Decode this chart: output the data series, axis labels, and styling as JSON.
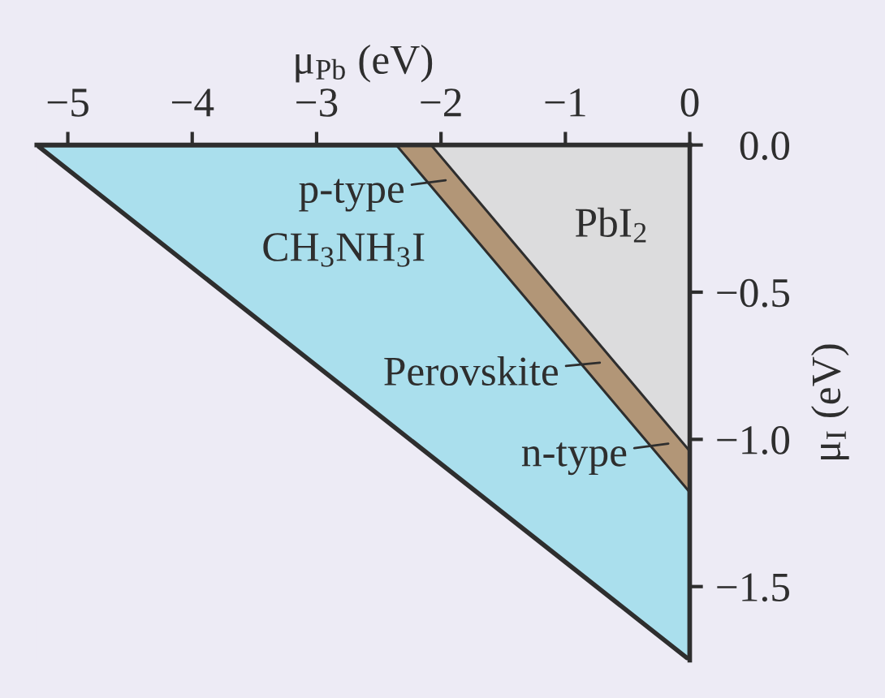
{
  "chart_data": {
    "type": "area",
    "xlabel": "μ$_{Pb}$ (eV)",
    "ylabel": "μ$_{I}$ (eV)",
    "xlim": [
      -5.25,
      0
    ],
    "ylim": [
      -1.75,
      0
    ],
    "xticks": [
      {
        "value": -5,
        "label": "−5"
      },
      {
        "value": -4,
        "label": "−4"
      },
      {
        "value": -3,
        "label": "−3"
      },
      {
        "value": -2,
        "label": "−2"
      },
      {
        "value": -1,
        "label": "−1"
      },
      0
    ],
    "yticks": [
      {
        "value": 0,
        "label": "0.0"
      },
      {
        "value": -0.5,
        "label": "−0.5"
      },
      {
        "value": -1.0,
        "label": "−1.0"
      },
      {
        "value": -1.5,
        "label": "−1.5"
      }
    ],
    "series": [
      {
        "name": "CH$_{3}$NH$_{3}$I",
        "color": "#aadfed",
        "x": [
          -5.25,
          0
        ],
        "values": [
          0,
          -1.75
        ]
      },
      {
        "color": "#b29677",
        "x": [
          -2.36,
          0
        ],
        "values": [
          0,
          -1.18
        ]
      },
      {
        "name": "PbI$_{2}$",
        "color": "#dcdcdd",
        "x": [
          -2.08,
          0
        ],
        "values": [
          0,
          -1.04
        ]
      }
    ],
    "annotations": [
      {
        "text": "p-type",
        "x": -2.09,
        "y": -0.135
      },
      {
        "text": "Perovskite",
        "x": -0.85,
        "y": -0.755
      },
      {
        "text": "n-type",
        "x": -0.3,
        "y": -1.03
      }
    ],
    "grid": false
  }
}
